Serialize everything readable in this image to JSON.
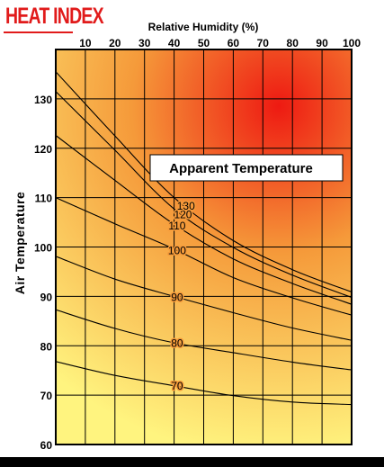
{
  "header": {
    "title": "HEAT INDEX"
  },
  "colors": {
    "title": "#e11b1b",
    "plot_hot": "#ee1a12",
    "plot_mid": "#f59a3a",
    "plot_cool": "#fff47f",
    "grid": "#000000",
    "box_fill": "#ffffff"
  },
  "chart_data": {
    "type": "line",
    "title": "HEAT INDEX",
    "xlabel": "Relative Humidity (%)",
    "ylabel": "Air Temperature",
    "annotation": "Apparent Temperature",
    "xlim": [
      0,
      100
    ],
    "ylim": [
      60,
      140
    ],
    "x_axis_position": "top",
    "grid": true,
    "x_ticks": [
      10,
      20,
      30,
      40,
      50,
      60,
      70,
      80,
      90,
      100
    ],
    "y_ticks": [
      60,
      70,
      80,
      90,
      100,
      110,
      120,
      130
    ],
    "x_tick_labels": [
      "10",
      "20",
      "30",
      "40",
      "50",
      "60",
      "70",
      "80",
      "90",
      "100"
    ],
    "y_tick_labels": [
      "60",
      "70",
      "80",
      "90",
      "100",
      "110",
      "120",
      "130"
    ],
    "series": [
      {
        "name": "70",
        "points": [
          [
            0,
            76.8
          ],
          [
            20,
            74.0
          ],
          [
            40,
            71.9
          ],
          [
            60,
            69.9
          ],
          [
            80,
            68.6
          ],
          [
            100,
            68.1
          ]
        ]
      },
      {
        "name": "80",
        "points": [
          [
            0,
            87.3
          ],
          [
            20,
            83.5
          ],
          [
            40,
            80.6
          ],
          [
            60,
            78.6
          ],
          [
            80,
            76.7
          ],
          [
            100,
            75.1
          ]
        ]
      },
      {
        "name": "90",
        "points": [
          [
            0,
            98.1
          ],
          [
            20,
            93.5
          ],
          [
            40,
            90.0
          ],
          [
            60,
            86.7
          ],
          [
            80,
            83.6
          ],
          [
            100,
            81.1
          ]
        ]
      },
      {
        "name": "100",
        "points": [
          [
            0,
            110.0
          ],
          [
            20,
            104.7
          ],
          [
            40,
            99.6
          ],
          [
            60,
            93.8
          ],
          [
            80,
            89.7
          ],
          [
            100,
            86.2
          ]
        ]
      },
      {
        "name": "110",
        "points": [
          [
            0,
            122.6
          ],
          [
            20,
            113.5
          ],
          [
            40,
            104.6
          ],
          [
            60,
            97.6
          ],
          [
            80,
            92.6
          ],
          [
            100,
            88.4
          ]
        ]
      },
      {
        "name": "120",
        "points": [
          [
            0,
            131.5
          ],
          [
            20,
            119.6
          ],
          [
            40,
            107.7
          ],
          [
            60,
            99.9
          ],
          [
            80,
            94.3
          ],
          [
            100,
            89.8
          ]
        ]
      },
      {
        "name": "130",
        "points": [
          [
            0,
            135.5
          ],
          [
            20,
            122.5
          ],
          [
            40,
            110.0
          ],
          [
            60,
            101.3
          ],
          [
            80,
            95.4
          ],
          [
            100,
            90.9
          ]
        ]
      }
    ],
    "curve_label_x": [
      41,
      41,
      41,
      41,
      41,
      43,
      44
    ]
  }
}
